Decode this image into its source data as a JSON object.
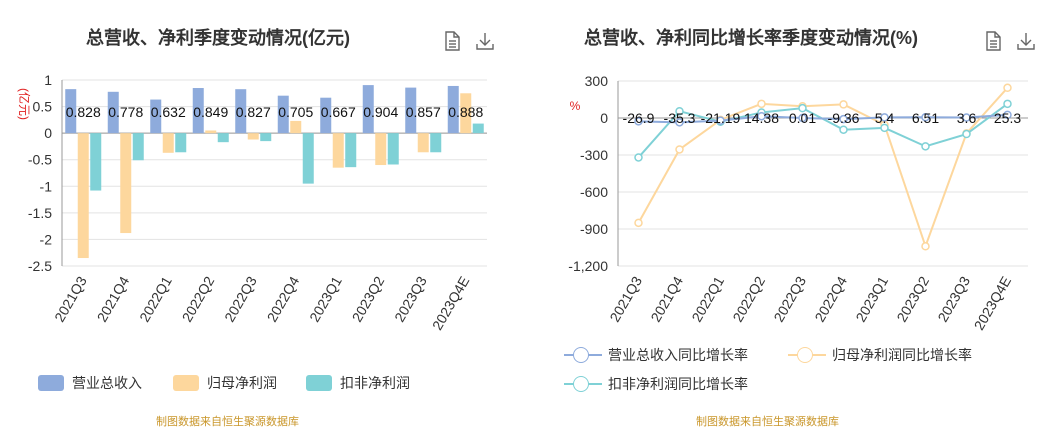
{
  "left": {
    "title": "总营收、净利季度变动情况(亿元)",
    "source": "制图数据来自恒生聚源数据库"
  },
  "right": {
    "title": "总营收、净利同比增长率季度变动情况(%)",
    "source": "制图数据来自恒生聚源数据库"
  },
  "icons": {
    "doc": "document-icon",
    "download": "download-icon"
  },
  "chart_data": [
    {
      "type": "bar",
      "title": "总营收、净利季度变动情况(亿元)",
      "ylabel": "(亿元)",
      "ylim": [
        -2.5,
        1
      ],
      "yticks": [
        -2.5,
        -2,
        -1.5,
        -1,
        -0.5,
        0,
        0.5,
        1
      ],
      "grid": true,
      "legend_position": "bottom",
      "categories": [
        "2021Q3",
        "2021Q4",
        "2022Q1",
        "2022Q2",
        "2022Q3",
        "2022Q4",
        "2023Q1",
        "2023Q2",
        "2023Q3",
        "2023Q4E"
      ],
      "data_labels": [
        "0.828",
        "0.778",
        "0.632",
        "0.849",
        "0.827",
        "0.705",
        "0.667",
        "0.904",
        "0.857",
        "0.888"
      ],
      "series": [
        {
          "name": "营业总收入",
          "color": "#8eabdc",
          "values": [
            0.828,
            0.778,
            0.632,
            0.849,
            0.827,
            0.705,
            0.667,
            0.904,
            0.857,
            0.888
          ]
        },
        {
          "name": "归母净利润",
          "color": "#fdd79d",
          "values": [
            -2.35,
            -1.88,
            -0.37,
            0.05,
            -0.12,
            0.23,
            -0.65,
            -0.6,
            -0.36,
            0.75
          ]
        },
        {
          "name": "扣非净利润",
          "color": "#7fd1d6",
          "values": [
            -1.08,
            -0.51,
            -0.36,
            -0.17,
            -0.15,
            -0.95,
            -0.64,
            -0.59,
            -0.36,
            0.18
          ]
        }
      ]
    },
    {
      "type": "line",
      "title": "总营收、净利同比增长率季度变动情况(%)",
      "ylabel": "%",
      "ylim": [
        -1200,
        300
      ],
      "yticks": [
        -1200,
        -900,
        -600,
        -300,
        0,
        300
      ],
      "ytick_labels": [
        "-1,200",
        "-900",
        "-600",
        "-300",
        "0",
        "300"
      ],
      "grid": true,
      "legend_position": "bottom",
      "categories": [
        "2021Q3",
        "2021Q4",
        "2022Q1",
        "2022Q2",
        "2022Q3",
        "2022Q4",
        "2023Q1",
        "2023Q2",
        "2023Q3",
        "2023Q4E"
      ],
      "data_labels": [
        "-26.9",
        "-35.3",
        "-21.19",
        "14.38",
        "0.01",
        "-9.36",
        "5.4",
        "6.51",
        "3.6",
        "25.3"
      ],
      "series": [
        {
          "name": "营业总收入同比增长率",
          "color": "#8eabdc",
          "values": [
            -26.9,
            -35.3,
            -21.19,
            14.38,
            0.01,
            -9.36,
            5.4,
            6.51,
            3.6,
            25.3
          ]
        },
        {
          "name": "归母净利润同比增长率",
          "color": "#fdd79d",
          "values": [
            -850,
            -255,
            -15,
            115,
            95,
            110,
            -55,
            -1040,
            -125,
            245
          ]
        },
        {
          "name": "扣非净利润同比增长率",
          "color": "#7fd1d6",
          "values": [
            -320,
            55,
            -30,
            45,
            80,
            -95,
            -80,
            -230,
            -130,
            115
          ]
        }
      ]
    }
  ]
}
